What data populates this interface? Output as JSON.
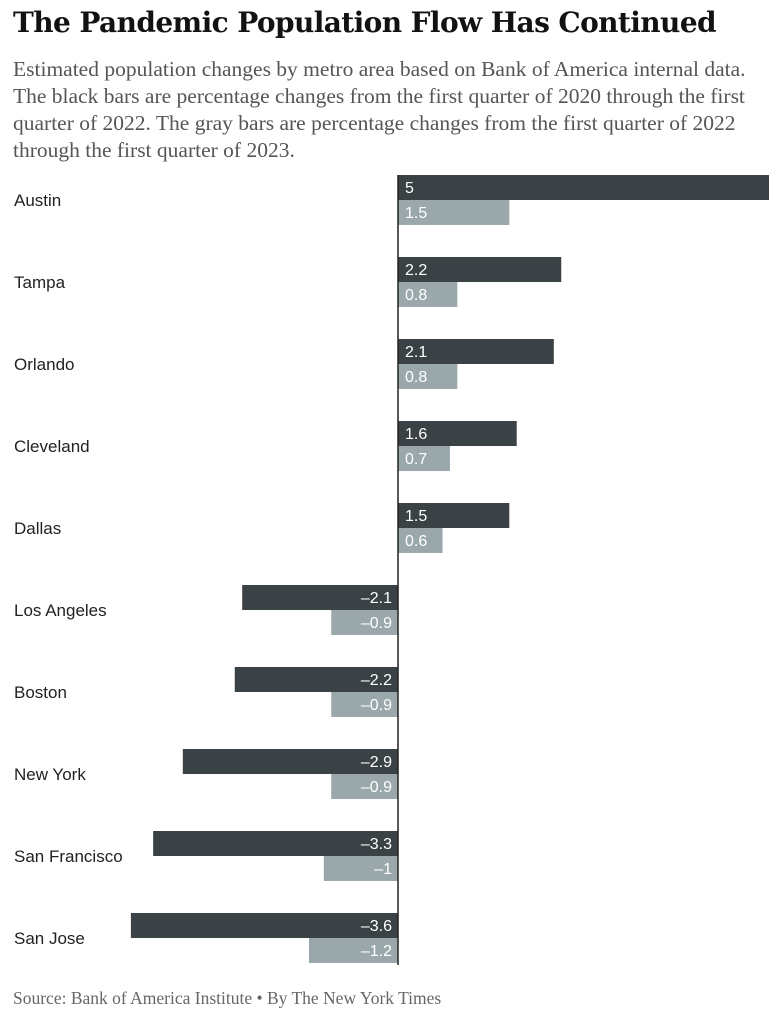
{
  "chart_data": {
    "type": "bar",
    "orientation": "horizontal",
    "title": "The Pandemic Population Flow Has Continued",
    "subtitle": "Estimated population changes by metro area based on Bank of America internal data. The black bars are percentage changes from the first quarter of 2020 through the first quarter of 2022. The gray bars are percentage changes from the first quarter of 2022 through the first quarter of 2023.",
    "categories": [
      "Austin",
      "Tampa",
      "Orlando",
      "Cleveland",
      "Dallas",
      "Los Angeles",
      "Boston",
      "New York",
      "San Francisco",
      "San Jose"
    ],
    "series": [
      {
        "values": [
          5,
          2.2,
          2.1,
          1.6,
          1.5,
          -2.1,
          -2.2,
          -2.9,
          -3.3,
          -3.6
        ],
        "labels": [
          "5",
          "2.2",
          "2.1",
          "1.6",
          "1.5",
          "–2.1",
          "–2.2",
          "–2.9",
          "–3.3",
          "–3.6"
        ],
        "color": "#3b4245"
      },
      {
        "values": [
          1.5,
          0.8,
          0.8,
          0.7,
          0.6,
          -0.9,
          -0.9,
          -0.9,
          -1,
          -1.2
        ],
        "labels": [
          "1.5",
          "0.8",
          "0.8",
          "0.7",
          "0.6",
          "–0.9",
          "–0.9",
          "–0.9",
          "–1",
          "–1.2"
        ],
        "color": "#9ba8ab"
      }
    ],
    "xlim": [
      -3.6,
      5
    ],
    "grid": false,
    "legend": "none"
  },
  "source": "Source: Bank of America Institute • By The New York Times"
}
